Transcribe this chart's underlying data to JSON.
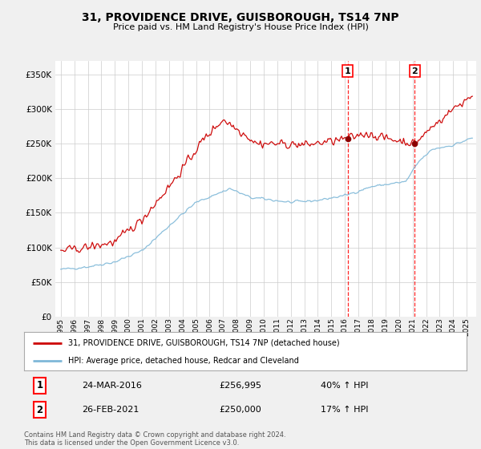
{
  "title": "31, PROVIDENCE DRIVE, GUISBOROUGH, TS14 7NP",
  "subtitle": "Price paid vs. HM Land Registry's House Price Index (HPI)",
  "ylim": [
    0,
    370000
  ],
  "yticks": [
    0,
    50000,
    100000,
    150000,
    200000,
    250000,
    300000,
    350000
  ],
  "hpi_color": "#7fb8d8",
  "price_color": "#cc0000",
  "sale1_date_label": "24-MAR-2016",
  "sale1_price": 256995,
  "sale1_hpi_pct": "40%",
  "sale1_x": 2016.2,
  "sale2_date_label": "26-FEB-2021",
  "sale2_price": 250000,
  "sale2_hpi_pct": "17%",
  "sale2_x": 2021.15,
  "legend_label_price": "31, PROVIDENCE DRIVE, GUISBOROUGH, TS14 7NP (detached house)",
  "legend_label_hpi": "HPI: Average price, detached house, Redcar and Cleveland",
  "footer": "Contains HM Land Registry data © Crown copyright and database right 2024.\nThis data is licensed under the Open Government Licence v3.0.",
  "background_color": "#f0f0f0",
  "plot_bg_color": "#ffffff"
}
